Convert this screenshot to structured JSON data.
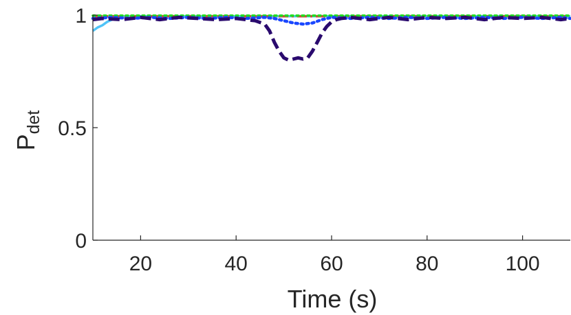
{
  "chart_data": {
    "type": "line",
    "title": "",
    "xlabel": "Time (s)",
    "ylabel_main": "P",
    "ylabel_sub": "det",
    "xlim": [
      10,
      110
    ],
    "ylim": [
      0,
      1
    ],
    "xticks": [
      20,
      40,
      60,
      80,
      100
    ],
    "xtick_labels": [
      "20",
      "40",
      "60",
      "80",
      "100"
    ],
    "yticks": [
      0,
      0.5,
      1
    ],
    "ytick_labels": [
      "0",
      "0.5",
      "1"
    ],
    "grid": false,
    "legend": "none",
    "series": [
      {
        "color": "#4fc3f7",
        "dash": "solid",
        "width": 3.5,
        "x": [
          10,
          11,
          12,
          13,
          14,
          15,
          16,
          20,
          30,
          40,
          50,
          60,
          70,
          80,
          90,
          100,
          110
        ],
        "y": [
          0.93,
          0.945,
          0.955,
          0.97,
          0.98,
          0.99,
          0.995,
          0.995,
          0.995,
          0.995,
          0.995,
          0.995,
          0.995,
          0.995,
          0.995,
          0.995,
          0.995
        ]
      },
      {
        "color": "#e53935",
        "dash": "dashdot",
        "width": 3.5,
        "x": [
          10,
          20,
          30,
          40,
          50,
          60,
          70,
          80,
          90,
          100,
          110
        ],
        "y": [
          0.995,
          0.995,
          0.995,
          0.995,
          0.995,
          0.995,
          0.995,
          0.995,
          0.995,
          0.995,
          0.995
        ]
      },
      {
        "color": "#22dd22",
        "dash": "dotted",
        "width": 3.5,
        "x": [
          10,
          20,
          30,
          40,
          50,
          60,
          70,
          80,
          90,
          100,
          110
        ],
        "y": [
          0.998,
          0.998,
          0.998,
          0.998,
          0.998,
          0.998,
          0.998,
          0.998,
          0.998,
          0.998,
          0.998
        ]
      },
      {
        "color": "#1a47ff",
        "dash": "dotted",
        "width": 4.5,
        "x": [
          10,
          14,
          18,
          22,
          26,
          30,
          34,
          38,
          42,
          46,
          48,
          50,
          52,
          54,
          56,
          58,
          60,
          64,
          68,
          72,
          76,
          80,
          84,
          88,
          92,
          96,
          100,
          104,
          108,
          110
        ],
        "y": [
          0.985,
          0.99,
          0.985,
          0.99,
          0.985,
          0.99,
          0.985,
          0.99,
          0.985,
          0.99,
          0.985,
          0.975,
          0.965,
          0.96,
          0.965,
          0.98,
          0.99,
          0.985,
          0.99,
          0.985,
          0.99,
          0.985,
          0.99,
          0.985,
          0.99,
          0.985,
          0.99,
          0.985,
          0.99,
          0.985
        ]
      },
      {
        "color": "#2a0a6e",
        "dash": "dashed",
        "width": 5,
        "x": [
          10,
          12,
          16,
          20,
          24,
          28,
          32,
          36,
          40,
          44,
          46,
          47,
          48,
          49,
          50,
          51,
          52,
          53,
          54,
          55,
          56,
          57,
          58,
          59,
          60,
          61,
          62,
          64,
          68,
          72,
          76,
          80,
          84,
          88,
          92,
          96,
          100,
          104,
          108,
          110
        ],
        "y": [
          0.98,
          0.985,
          0.98,
          0.99,
          0.98,
          0.99,
          0.985,
          0.98,
          0.985,
          0.975,
          0.96,
          0.93,
          0.88,
          0.84,
          0.81,
          0.8,
          0.805,
          0.81,
          0.805,
          0.81,
          0.84,
          0.88,
          0.92,
          0.95,
          0.97,
          0.98,
          0.985,
          0.99,
          0.98,
          0.99,
          0.98,
          0.99,
          0.985,
          0.99,
          0.98,
          0.99,
          0.985,
          0.99,
          0.98,
          0.985
        ]
      }
    ]
  }
}
